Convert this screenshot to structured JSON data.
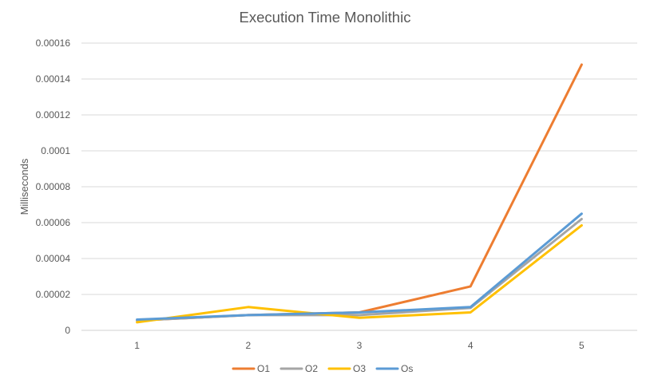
{
  "chart_data": {
    "type": "line",
    "title": "Execution Time Monolithic",
    "xlabel": "",
    "ylabel": "Milliseconds",
    "categories": [
      "1",
      "2",
      "3",
      "4",
      "5"
    ],
    "ylim": [
      0,
      0.00016
    ],
    "yticks": [
      0,
      2e-05,
      4e-05,
      6e-05,
      8e-05,
      0.0001,
      0.00012,
      0.00014,
      0.00016
    ],
    "ytick_labels": [
      "0",
      "0.00002",
      "0.00004",
      "0.00006",
      "0.00008",
      "0.0001",
      "0.00012",
      "0.00014",
      "0.00016"
    ],
    "grid": true,
    "legend_position": "bottom",
    "series": [
      {
        "name": "O1",
        "color": "#ED7D31",
        "values": [
          5.5e-06,
          8.5e-06,
          1e-05,
          2.45e-05,
          0.000148
        ]
      },
      {
        "name": "O2",
        "color": "#A5A5A5",
        "values": [
          5.5e-06,
          8.5e-06,
          8.5e-06,
          1.25e-05,
          6.2e-05
        ]
      },
      {
        "name": "O3",
        "color": "#FFC000",
        "values": [
          4.5e-06,
          1.3e-05,
          7e-06,
          1e-05,
          5.85e-05
        ]
      },
      {
        "name": "Os",
        "color": "#5B9BD5",
        "values": [
          6e-06,
          8.5e-06,
          1e-05,
          1.3e-05,
          6.5e-05
        ]
      }
    ]
  }
}
